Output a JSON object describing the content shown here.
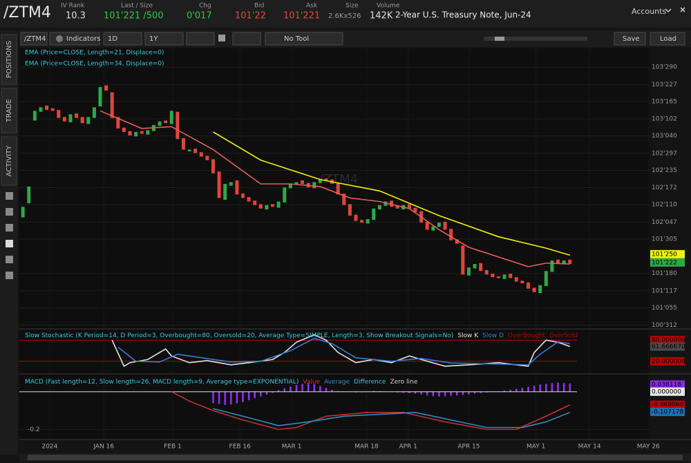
{
  "header": {
    "symbol": "/ZTM4",
    "fields": [
      {
        "label": "IV Rank",
        "value": "10.3"
      },
      {
        "label": "Last / Size",
        "value": "101'221 /500"
      },
      {
        "label": "Chg",
        "value": "0'017"
      },
      {
        "label": "Bid",
        "value": "101'22"
      },
      {
        "label": "Ask",
        "value": "101'221"
      },
      {
        "label": "Size",
        "value": "2.6Kx526"
      },
      {
        "label": "Volume",
        "value": "142K"
      }
    ],
    "description": "2-Year U.S. Treasury Note, Jun-24",
    "accounts": "Accounts"
  },
  "toolbar": {
    "symbol": "/ZTM4",
    "indicators": "Indicators",
    "period": "1D",
    "range": "1Y",
    "tool": "No Tool",
    "save": "Save",
    "load": "Load"
  },
  "sidebar": [
    "POSITIONS",
    "TRADE",
    "ACTIVITY"
  ],
  "chart_data": [
    {
      "type": "candlestick",
      "title": "/ZTM4",
      "xlim": [
        -0.6,
        105.4
      ],
      "xticks": [
        {
          "value": 4.5,
          "label": "2024"
        },
        {
          "value": 13.6,
          "label": "JAN 16"
        },
        {
          "value": 25.2,
          "label": "FEB 1"
        },
        {
          "value": 36.5,
          "label": "FEB 16"
        },
        {
          "value": 45.2,
          "label": "MAR 1"
        },
        {
          "value": 57.8,
          "label": "MAR 18"
        },
        {
          "value": 64.8,
          "label": "APR 1"
        },
        {
          "value": 75,
          "label": "APR 15"
        },
        {
          "value": 86.3,
          "label": "MAY 1"
        },
        {
          "value": 95.3,
          "label": "MAY 14"
        },
        {
          "value": 105.2,
          "label": "MAY 26"
        }
      ],
      "ylim": [
        100.94,
        104.12
      ],
      "yticks": [
        {
          "value": 103.90625,
          "label": "103'290"
        },
        {
          "value": 103.709375,
          "label": "103'227"
        },
        {
          "value": 103.515625,
          "label": "103'165"
        },
        {
          "value": 103.31875,
          "label": "103'102"
        },
        {
          "value": 103.125,
          "label": "103'040"
        },
        {
          "value": 102.928125,
          "label": "102'297"
        },
        {
          "value": 102.734375,
          "label": "102'235"
        },
        {
          "value": 102.5375,
          "label": "102'172"
        },
        {
          "value": 102.34375,
          "label": "102'110"
        },
        {
          "value": 102.146875,
          "label": "102'047"
        },
        {
          "value": 101.953125,
          "label": "101'305"
        },
        {
          "value": 101.5625,
          "label": "101'180"
        },
        {
          "value": 101.365625,
          "label": "101'117"
        },
        {
          "value": 101.171875,
          "label": "101'055"
        },
        {
          "value": 100.975,
          "label": "100'312"
        }
      ],
      "up_color": "#2ea84a",
      "down_color": "#e0453c",
      "open": [
        102.2,
        102.36,
        103.3,
        103.4,
        103.47,
        103.44,
        103.42,
        103.34,
        103.28,
        103.38,
        103.34,
        103.26,
        103.33,
        103.46,
        103.7,
        103.62,
        103.34,
        103.22,
        103.18,
        103.12,
        103.18,
        103.14,
        103.18,
        103.24,
        103.3,
        103.26,
        103.4,
        103.1,
        102.95,
        102.98,
        102.94,
        102.9,
        102.86,
        102.72,
        102.4,
        102.56,
        102.62,
        102.47,
        102.43,
        102.39,
        102.35,
        102.29,
        102.35,
        102.31,
        102.37,
        102.53,
        102.57,
        102.62,
        102.59,
        102.53,
        102.59,
        102.64,
        102.63,
        102.59,
        102.47,
        102.35,
        102.23,
        102.17,
        102.13,
        102.17,
        102.29,
        102.33,
        102.39,
        102.33,
        102.29,
        102.35,
        102.31,
        102.27,
        102.15,
        102.05,
        102.09,
        102.15,
        102.07,
        101.95,
        101.88,
        101.54,
        101.62,
        101.68,
        101.6,
        101.56,
        101.53,
        101.5,
        101.56,
        101.52,
        101.48,
        101.46,
        101.4,
        101.34,
        101.42,
        101.58,
        101.72,
        101.67,
        101.72
      ],
      "close": [
        102.32,
        102.55,
        103.41,
        103.45,
        103.42,
        103.41,
        103.33,
        103.29,
        103.37,
        103.33,
        103.27,
        103.34,
        103.45,
        103.68,
        103.64,
        103.33,
        103.21,
        103.17,
        103.13,
        103.17,
        103.15,
        103.19,
        103.25,
        103.29,
        103.27,
        103.41,
        103.09,
        102.97,
        102.97,
        102.93,
        102.89,
        102.85,
        102.7,
        102.42,
        102.58,
        102.6,
        102.46,
        102.42,
        102.38,
        102.34,
        102.3,
        102.34,
        102.32,
        102.38,
        102.54,
        102.58,
        102.6,
        102.58,
        102.54,
        102.6,
        102.63,
        102.62,
        102.58,
        102.46,
        102.34,
        102.22,
        102.16,
        102.14,
        102.18,
        102.3,
        102.34,
        102.38,
        102.32,
        102.3,
        102.34,
        102.3,
        102.26,
        102.14,
        102.06,
        102.1,
        102.14,
        102.06,
        101.94,
        101.9,
        101.55,
        101.63,
        101.67,
        101.59,
        101.55,
        101.52,
        101.51,
        101.55,
        101.51,
        101.47,
        101.45,
        101.39,
        101.35,
        101.43,
        101.59,
        101.71,
        101.68,
        101.71,
        101.67
      ],
      "series": [
        {
          "name": "EMA (Price=CLOSE, Length=21, Displace=0)",
          "color": "#e8605a",
          "x": [
            13,
            20,
            25,
            32,
            40,
            45,
            50,
            55,
            60,
            65,
            70,
            75,
            80,
            85,
            88,
            92
          ],
          "values": [
            103.41,
            103.21,
            103.23,
            102.97,
            102.58,
            102.58,
            102.55,
            102.42,
            102.38,
            102.3,
            102.06,
            101.86,
            101.75,
            101.64,
            101.68,
            101.67
          ]
        },
        {
          "name": "EMA (Price=CLOSE, Length=34, Displace=0)",
          "color": "#f2f20a",
          "x": [
            32,
            40,
            50,
            60,
            70,
            80,
            88,
            92
          ],
          "values": [
            103.17,
            102.85,
            102.63,
            102.5,
            102.22,
            101.98,
            101.85,
            101.77
          ]
        }
      ],
      "markers": [
        {
          "value": 101.78125,
          "label": "101'250",
          "color": "#f2f20a"
        },
        {
          "value": 101.6875,
          "label": "101'222",
          "color": "#2ea84a"
        }
      ]
    },
    {
      "type": "line",
      "title": "Slow Stochastic (K Period=14, D Period=3, Overbought=80, Oversold=20, Average Type=SIMPLE, Length=3, Show Breakout Signals=No)",
      "ylim": [
        0,
        100
      ],
      "series": [
        {
          "name": "Slow K",
          "color": "#e6e6e6",
          "x": [
            15,
            17,
            18,
            21,
            24,
            25,
            28,
            31,
            35,
            38,
            42,
            44,
            46,
            49,
            51,
            53,
            56,
            59,
            62,
            65,
            67,
            71,
            75,
            80,
            85,
            86,
            88,
            90,
            92
          ],
          "values": [
            80,
            6,
            16,
            25,
            55,
            35,
            16,
            22,
            10,
            16,
            25,
            45,
            74,
            95,
            80,
            45,
            16,
            25,
            16,
            35,
            25,
            6,
            10,
            16,
            6,
            45,
            80,
            74,
            62
          ]
        },
        {
          "name": "Slow D",
          "color": "#3a7bd5",
          "x": [
            16,
            19,
            23,
            26,
            30,
            35,
            40,
            45,
            49,
            52,
            56,
            62,
            67,
            72,
            80,
            85,
            87,
            90,
            92
          ],
          "values": [
            60,
            20,
            18,
            40,
            30,
            18,
            20,
            50,
            85,
            70,
            30,
            20,
            28,
            15,
            12,
            10,
            40,
            75,
            70
          ]
        }
      ],
      "levels": [
        {
          "name": "OverBought",
          "value": 80,
          "color": "#c00000"
        },
        {
          "name": "OverSold",
          "value": 20,
          "color": "#c00000"
        }
      ],
      "markers": [
        {
          "value": 80,
          "label": "80.000000",
          "color": "#c00000"
        },
        {
          "value": 61.66667,
          "label": "61.666670",
          "color": "#4a4a4a"
        },
        {
          "value": 20,
          "label": "20.000000",
          "color": "#c00000"
        }
      ]
    },
    {
      "type": "macd",
      "title": "MACD (Fast length=12, Slow length=26, MACD length=9, Average type=EXPONENTIAL)",
      "ylim": [
        -0.25,
        0.08
      ],
      "yticks": [
        -0.2
      ],
      "series": [
        {
          "name": "Value",
          "color": "#c83030",
          "x": [
            25,
            28,
            32,
            37,
            43,
            46,
            51,
            58,
            64,
            71,
            78,
            83,
            88,
            92
          ],
          "values": [
            0,
            -0.05,
            -0.1,
            -0.15,
            -0.2,
            -0.19,
            -0.13,
            -0.11,
            -0.11,
            -0.16,
            -0.2,
            -0.2,
            -0.13,
            -0.07
          ]
        },
        {
          "name": "Average",
          "color": "#2e8ec8",
          "x": [
            32,
            37,
            43,
            48,
            54,
            60,
            66,
            72,
            78,
            84,
            88,
            92
          ],
          "values": [
            -0.09,
            -0.13,
            -0.18,
            -0.16,
            -0.13,
            -0.12,
            -0.11,
            -0.15,
            -0.19,
            -0.19,
            -0.16,
            -0.11
          ]
        }
      ],
      "difference": {
        "name": "Difference",
        "color": "#9b30ff",
        "values": [
          null,
          null,
          null,
          null,
          null,
          null,
          null,
          null,
          null,
          null,
          null,
          null,
          null,
          null,
          null,
          null,
          null,
          null,
          null,
          null,
          null,
          null,
          null,
          null,
          null,
          null,
          null,
          null,
          null,
          null,
          null,
          null,
          -0.06,
          -0.065,
          -0.07,
          -0.068,
          -0.062,
          -0.055,
          -0.045,
          -0.035,
          -0.025,
          -0.015,
          -0.006,
          0.008,
          0.018,
          0.028,
          0.036,
          0.042,
          0.045,
          0.04,
          0.03,
          0.02,
          0.01,
          0.004,
          0.002,
          -0.002,
          -0.004,
          -0.003,
          0.002,
          0.004,
          0.003,
          0.001,
          -0.002,
          -0.004,
          -0.006,
          -0.008,
          -0.01,
          -0.014,
          -0.02,
          -0.024,
          -0.026,
          -0.024,
          -0.022,
          -0.02,
          -0.017,
          -0.014,
          -0.01,
          -0.007,
          -0.004,
          -0.002,
          0.002,
          0.006,
          0.01,
          0.015,
          0.02,
          0.026,
          0.032,
          0.038,
          0.042,
          0.046,
          0.048,
          0.046,
          0.044
        ]
      },
      "zero_line": {
        "name": "Zero line",
        "value": 0,
        "color": "#e6e6e6"
      },
      "markers": [
        {
          "value": 0.038118,
          "label": "0.038118",
          "color": "#8a2be2"
        },
        {
          "value": 0,
          "label": "0.000000",
          "color": "#e6e6e6"
        },
        {
          "value": -0.06906,
          "label": "-0.069060",
          "color": "#c00000"
        },
        {
          "value": -0.107178,
          "label": "-0.107178",
          "color": "#1f6fb0"
        }
      ]
    }
  ]
}
